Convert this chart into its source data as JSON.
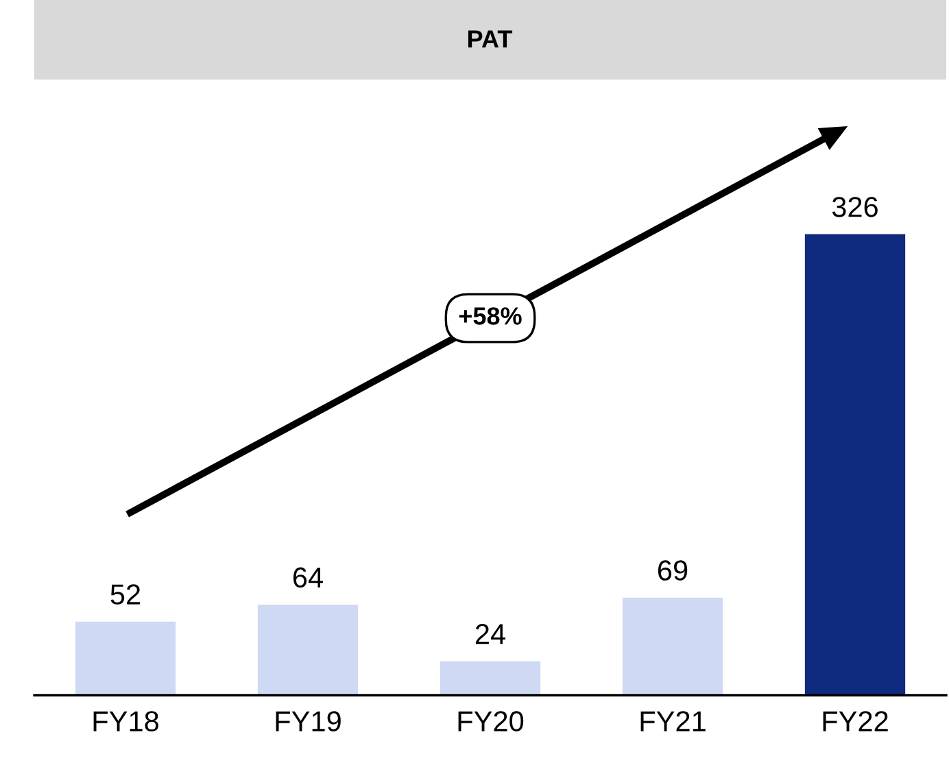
{
  "chart_data": {
    "type": "bar",
    "title": "PAT",
    "categories": [
      "FY18",
      "FY19",
      "FY20",
      "FY21",
      "FY22"
    ],
    "values": [
      52,
      64,
      24,
      69,
      326
    ],
    "colors": [
      "#cfd9f4",
      "#cfd9f4",
      "#cfd9f4",
      "#cfd9f4",
      "#0f2a7f"
    ],
    "data_labels": true,
    "annotations": [
      "+58%"
    ],
    "grid": false,
    "legend": false
  }
}
